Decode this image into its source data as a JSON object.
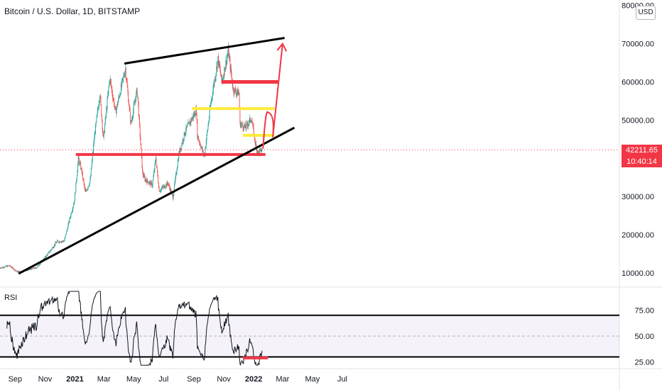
{
  "header": {
    "title": "Bitcoin / U.S. Dollar, 1D, BITSTAMP",
    "currency": "USD"
  },
  "last_price": {
    "value": "42211.65",
    "countdown": "10:40:14",
    "color": "#f23645"
  },
  "chart_data": [
    {
      "type": "candlestick",
      "title": "Bitcoin / U.S. Dollar, 1D, BITSTAMP",
      "y_ticks": [
        "80000.00",
        "70000.00",
        "60000.00",
        "50000.00",
        "40000.00",
        "30000.00",
        "20000.00",
        "10000.00"
      ],
      "ylim": [
        7000,
        80500
      ],
      "x_ticks": [
        "Sep",
        "Nov",
        "2021",
        "Mar",
        "May",
        "Jul",
        "Sep",
        "Nov",
        "2022",
        "Mar",
        "May",
        "Jul"
      ],
      "colors": {
        "up": "#26a69a",
        "down": "#ef5350"
      },
      "price_path": [
        [
          "2020-08-01",
          11300
        ],
        [
          "2020-08-20",
          11900
        ],
        [
          "2020-09-05",
          10300
        ],
        [
          "2020-09-25",
          10700
        ],
        [
          "2020-10-15",
          11400
        ],
        [
          "2020-10-25",
          13000
        ],
        [
          "2020-11-10",
          15500
        ],
        [
          "2020-11-25",
          18200
        ],
        [
          "2020-12-10",
          18300
        ],
        [
          "2020-12-20",
          23500
        ],
        [
          "2020-12-31",
          29000
        ],
        [
          "2021-01-08",
          40000
        ],
        [
          "2021-01-15",
          36500
        ],
        [
          "2021-01-22",
          31000
        ],
        [
          "2021-02-01",
          34000
        ],
        [
          "2021-02-10",
          46000
        ],
        [
          "2021-02-21",
          57000
        ],
        [
          "2021-02-28",
          45000
        ],
        [
          "2021-03-13",
          61000
        ],
        [
          "2021-03-25",
          52000
        ],
        [
          "2021-04-14",
          63500
        ],
        [
          "2021-04-25",
          49000
        ],
        [
          "2021-05-08",
          58000
        ],
        [
          "2021-05-19",
          36000
        ],
        [
          "2021-05-24",
          34500
        ],
        [
          "2021-06-08",
          33000
        ],
        [
          "2021-06-15",
          40000
        ],
        [
          "2021-06-22",
          31500
        ],
        [
          "2021-07-10",
          33500
        ],
        [
          "2021-07-20",
          29800
        ],
        [
          "2021-08-01",
          41000
        ],
        [
          "2021-08-14",
          47000
        ],
        [
          "2021-08-24",
          49500
        ],
        [
          "2021-09-06",
          52500
        ],
        [
          "2021-09-08",
          46000
        ],
        [
          "2021-09-22",
          40500
        ],
        [
          "2021-10-06",
          55000
        ],
        [
          "2021-10-15",
          62000
        ],
        [
          "2021-10-20",
          66000
        ],
        [
          "2021-10-28",
          60000
        ],
        [
          "2021-11-10",
          68000
        ],
        [
          "2021-11-20",
          58000
        ],
        [
          "2021-12-02",
          57000
        ],
        [
          "2021-12-04",
          49000
        ],
        [
          "2021-12-15",
          48000
        ],
        [
          "2021-12-27",
          50500
        ],
        [
          "2022-01-05",
          43500
        ],
        [
          "2022-01-10",
          41500
        ],
        [
          "2022-01-18",
          42200
        ]
      ]
    },
    {
      "type": "line",
      "title": "RSI",
      "y_ticks": [
        "75.00",
        "50.00",
        "25.00"
      ],
      "ylim": [
        20,
        95
      ],
      "band": [
        30,
        70
      ]
    }
  ],
  "annotations": {
    "lower_trendline": {
      "from": [
        "2020-09-08",
        9800
      ],
      "to": [
        "2022-03-25",
        48000
      ],
      "color": "#000000"
    },
    "upper_trendline": {
      "from": [
        "2021-04-12",
        64800
      ],
      "to": [
        "2022-03-05",
        71500
      ],
      "color": "#000000"
    },
    "support_line": {
      "from": [
        "2021-01-03",
        41000
      ],
      "to": [
        "2022-01-25",
        41000
      ],
      "color": "#f23645"
    },
    "resistance_red": {
      "from": [
        "2021-10-27",
        60000
      ],
      "to": [
        "2022-02-22",
        60000
      ],
      "color": "#f23645"
    },
    "resistance_yellow_upper": {
      "from": [
        "2021-08-28",
        53000
      ],
      "to": [
        "2022-02-12",
        53000
      ],
      "color": "#ffeb3b"
    },
    "resistance_yellow_lower": {
      "from": [
        "2021-12-10",
        46000
      ],
      "to": [
        "2022-02-12",
        46000
      ],
      "color": "#ffeb3b"
    },
    "projection_path": [
      [
        "2022-01-20",
        42500
      ],
      [
        "2022-01-30",
        52000
      ],
      [
        "2022-02-09",
        45500
      ],
      [
        "2022-03-01",
        70000
      ]
    ],
    "projection_color": "#f23645",
    "rsi_levels": [
      70,
      30
    ],
    "rsi_marker": {
      "from": [
        "2021-12-10",
        29
      ],
      "to": [
        "2022-01-30",
        29
      ],
      "color": "#f23645"
    }
  }
}
